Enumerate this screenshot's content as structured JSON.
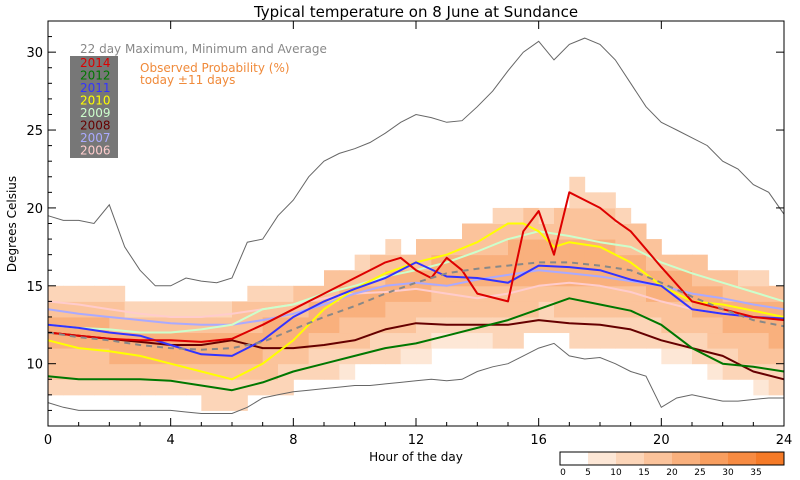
{
  "chart_data": {
    "type": "line",
    "title": "Typical temperature on  8 June at Sundance",
    "xlabel": "Hour of the day",
    "ylabel": "Degrees Celsius",
    "xlim": [
      0,
      24
    ],
    "ylim": [
      6,
      32
    ],
    "xticks": [
      0,
      4,
      8,
      12,
      16,
      20,
      24
    ],
    "yticks": [
      10,
      15,
      20,
      25,
      30
    ],
    "band_title": "22 day Maximum, Minimum and Average",
    "prob_label_1": "Observed Probability (%)",
    "prob_label_2": "today ±11 days",
    "colorbar": {
      "ticks": [
        "0",
        "5",
        "10",
        "15",
        "20",
        "25",
        "30",
        "35"
      ],
      "colors": [
        "#ffffff",
        "#fde7d6",
        "#fcd5b8",
        "#fbc39b",
        "#f9b07d",
        "#f89e5f",
        "#f78b42",
        "#f57a27"
      ]
    },
    "max_line": {
      "x": [
        0,
        0.5,
        1,
        1.5,
        2,
        2.5,
        3,
        3.5,
        4,
        4.5,
        5,
        5.5,
        6,
        6.5,
        7,
        7.5,
        8,
        8.5,
        9,
        9.5,
        10,
        10.5,
        11,
        11.5,
        12,
        12.5,
        13,
        13.5,
        14,
        14.5,
        15,
        15.5,
        16,
        16.5,
        17,
        17.5,
        18,
        18.5,
        19,
        19.5,
        20,
        20.5,
        21,
        21.5,
        22,
        22.5,
        23,
        23.5,
        24
      ],
      "y": [
        19.5,
        19.2,
        19.2,
        19.0,
        20.2,
        17.5,
        16.0,
        15.0,
        15.0,
        15.5,
        15.3,
        15.2,
        15.5,
        17.8,
        18.0,
        19.5,
        20.5,
        22.0,
        23.0,
        23.5,
        23.8,
        24.2,
        24.8,
        25.5,
        26.0,
        25.8,
        25.5,
        25.6,
        26.5,
        27.5,
        28.8,
        30.0,
        30.7,
        29.5,
        30.5,
        30.9,
        30.5,
        29.5,
        28.0,
        26.5,
        25.5,
        25.0,
        24.5,
        24.0,
        23.0,
        22.5,
        21.5,
        21.0,
        19.6
      ]
    },
    "min_line": {
      "x": [
        0,
        0.5,
        1,
        1.5,
        2,
        2.5,
        3,
        3.5,
        4,
        4.5,
        5,
        5.5,
        6,
        6.5,
        7,
        7.5,
        8,
        8.5,
        9,
        9.5,
        10,
        10.5,
        11,
        11.5,
        12,
        12.5,
        13,
        13.5,
        14,
        14.5,
        15,
        15.5,
        16,
        16.5,
        17,
        17.5,
        18,
        18.5,
        19,
        19.5,
        20,
        20.5,
        21,
        21.5,
        22,
        22.5,
        23,
        23.5,
        24
      ],
      "y": [
        7.5,
        7.2,
        7.0,
        7.0,
        7.0,
        7.0,
        7.0,
        7.0,
        7.0,
        6.9,
        6.8,
        6.8,
        6.8,
        7.2,
        7.8,
        8.0,
        8.2,
        8.3,
        8.4,
        8.5,
        8.6,
        8.6,
        8.7,
        8.8,
        8.9,
        9.0,
        8.9,
        9.0,
        9.5,
        9.8,
        10.0,
        10.5,
        11.0,
        11.3,
        10.5,
        10.3,
        10.4,
        10.0,
        9.5,
        9.2,
        7.2,
        7.8,
        8.0,
        7.8,
        7.6,
        7.6,
        7.7,
        7.8,
        7.8
      ]
    },
    "avg_line": {
      "x": [
        0,
        1,
        2,
        3,
        4,
        5,
        6,
        7,
        8,
        9,
        10,
        11,
        12,
        13,
        14,
        15,
        16,
        17,
        18,
        19,
        20,
        21,
        22,
        23,
        24
      ],
      "y": [
        12.0,
        11.7,
        11.5,
        11.2,
        11.0,
        10.9,
        11.0,
        11.4,
        12.2,
        13.0,
        13.7,
        14.5,
        15.2,
        15.8,
        16.1,
        16.3,
        16.5,
        16.5,
        16.3,
        16.0,
        15.2,
        14.3,
        13.5,
        12.8,
        12.4
      ]
    },
    "series": [
      {
        "name": "2014",
        "color": "#dd0000",
        "x": [
          0,
          1,
          2,
          3,
          4,
          5,
          6,
          7,
          8,
          9,
          10,
          11,
          11.5,
          12,
          12.5,
          13,
          13.5,
          14,
          15,
          15.5,
          16,
          16.5,
          17,
          17.5,
          18,
          18.5,
          19,
          20,
          21,
          22,
          23,
          24
        ],
        "y": [
          12.0,
          11.8,
          11.6,
          11.5,
          11.5,
          11.4,
          11.6,
          12.5,
          13.5,
          14.5,
          15.5,
          16.5,
          16.8,
          16.0,
          15.5,
          16.8,
          16.0,
          14.5,
          14.0,
          18.5,
          19.8,
          17.0,
          21.0,
          20.5,
          20.0,
          19.2,
          18.5,
          16.2,
          14.0,
          13.5,
          13.0,
          12.8
        ]
      },
      {
        "name": "2012",
        "color": "#007700",
        "x": [
          0,
          1,
          2,
          3,
          4,
          5,
          6,
          7,
          8,
          9,
          10,
          11,
          12,
          13,
          14,
          15,
          16,
          17,
          18,
          19,
          20,
          21,
          22,
          23,
          24
        ],
        "y": [
          9.2,
          9.0,
          9.0,
          9.0,
          8.9,
          8.6,
          8.3,
          8.8,
          9.5,
          10.0,
          10.5,
          11.0,
          11.3,
          11.8,
          12.3,
          12.8,
          13.5,
          14.2,
          13.8,
          13.4,
          12.5,
          11.0,
          10.0,
          9.8,
          9.5
        ]
      },
      {
        "name": "2011",
        "color": "#3333ff",
        "x": [
          0,
          1,
          2,
          3,
          4,
          5,
          6,
          7,
          8,
          9,
          10,
          11,
          12,
          13,
          14,
          15,
          16,
          17,
          18,
          19,
          20,
          21,
          22,
          23,
          24
        ],
        "y": [
          12.5,
          12.3,
          12.0,
          11.8,
          11.2,
          10.6,
          10.5,
          11.5,
          13.0,
          14.0,
          14.8,
          15.5,
          16.5,
          15.6,
          15.5,
          15.2,
          16.3,
          16.2,
          16.0,
          15.4,
          15.0,
          13.5,
          13.2,
          13.0,
          12.9
        ]
      },
      {
        "name": "2010",
        "color": "#ffff00",
        "x": [
          0,
          1,
          2,
          3,
          4,
          5,
          6,
          7,
          8,
          9,
          10,
          11,
          12,
          13,
          14,
          15,
          15.5,
          16,
          16.5,
          17,
          18,
          19,
          20,
          21,
          22,
          23,
          24
        ],
        "y": [
          11.5,
          11.0,
          10.8,
          10.5,
          10.0,
          9.5,
          9.0,
          10.0,
          11.5,
          13.5,
          14.8,
          15.8,
          16.5,
          17.0,
          17.8,
          19.0,
          19.0,
          18.5,
          17.5,
          17.8,
          17.5,
          16.5,
          15.0,
          14.0,
          13.8,
          13.4,
          13.0
        ]
      },
      {
        "name": "2009",
        "color": "#ccffcc",
        "x": [
          0,
          1,
          2,
          3,
          4,
          5,
          6,
          7,
          8,
          9,
          10,
          11,
          12,
          13,
          14,
          15,
          16,
          17,
          18,
          19,
          20,
          21,
          22,
          23,
          24
        ],
        "y": [
          12.5,
          12.3,
          12.2,
          12.0,
          12.0,
          12.2,
          12.5,
          13.5,
          13.8,
          14.5,
          15.0,
          15.6,
          16.0,
          16.5,
          17.2,
          18.0,
          18.5,
          18.2,
          17.8,
          17.5,
          16.5,
          15.8,
          15.2,
          14.6,
          14.0
        ]
      },
      {
        "name": "2008",
        "color": "#660000",
        "x": [
          0,
          1,
          2,
          3,
          4,
          5,
          6,
          7,
          8,
          9,
          10,
          11,
          12,
          13,
          14,
          15,
          16,
          17,
          18,
          19,
          20,
          21,
          22,
          23,
          24
        ],
        "y": [
          12.0,
          11.8,
          11.6,
          11.4,
          11.2,
          11.2,
          11.5,
          11.0,
          11.0,
          11.2,
          11.5,
          12.2,
          12.6,
          12.5,
          12.5,
          12.5,
          12.8,
          12.6,
          12.5,
          12.2,
          11.5,
          11.0,
          10.5,
          9.5,
          9.0
        ]
      },
      {
        "name": "2007",
        "color": "#aaaaff",
        "x": [
          0,
          1,
          2,
          3,
          4,
          5,
          6,
          7,
          8,
          9,
          10,
          11,
          12,
          13,
          14,
          15,
          16,
          17,
          18,
          19,
          20,
          21,
          22,
          23,
          24
        ],
        "y": [
          13.5,
          13.2,
          13.0,
          12.8,
          12.6,
          12.5,
          12.5,
          12.8,
          13.2,
          13.8,
          14.5,
          15.0,
          15.2,
          15.0,
          15.4,
          15.7,
          16.0,
          15.8,
          15.6,
          15.3,
          15.0,
          14.5,
          14.2,
          13.8,
          13.5
        ]
      },
      {
        "name": "2006",
        "color": "#ffcccc",
        "x": [
          0,
          1,
          2,
          3,
          4,
          5,
          6,
          7,
          8,
          9,
          10,
          11,
          12,
          13,
          14,
          15,
          16,
          17,
          18,
          19,
          20,
          21,
          22,
          23,
          24
        ],
        "y": [
          14.0,
          13.8,
          13.5,
          13.2,
          13.0,
          13.0,
          13.2,
          13.5,
          13.8,
          14.2,
          14.5,
          14.6,
          14.8,
          14.5,
          14.2,
          14.5,
          15.0,
          15.2,
          15.0,
          14.6,
          14.0,
          13.5,
          13.2,
          13.0,
          12.8
        ]
      }
    ]
  }
}
